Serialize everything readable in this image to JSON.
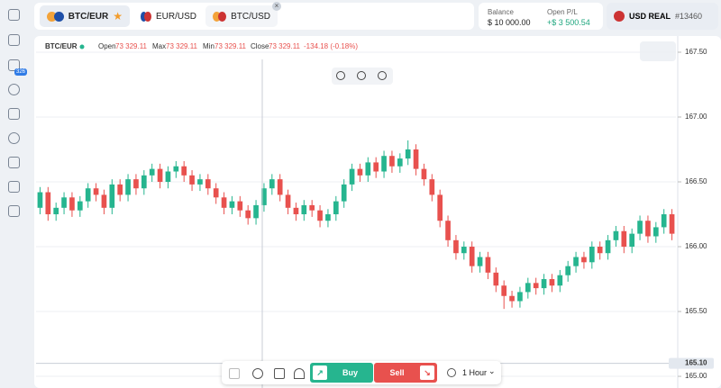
{
  "ui": {
    "badge": "326",
    "tabs": [
      "BTC/EUR",
      "EUR/USD",
      "BTC/USD"
    ],
    "balance_label": "Balance",
    "balance": "$ 10 000.00",
    "pl_label": "Open P/L",
    "pl": "+$ 3 500.54",
    "account": "USD REAL",
    "account_id": "#13460",
    "buy": "Buy",
    "sell": "Sell",
    "interval": "1 Hour"
  },
  "chart_data": {
    "type": "candlestick",
    "title": "BTC/EUR",
    "ohlc": {
      "open_label": "Open",
      "open": "73 329.11",
      "max_label": "Max",
      "max": "73 329.11",
      "min_label": "Min",
      "min": "73 329.11",
      "close_label": "Close",
      "close": "73 329.11",
      "change": "-134.18 (-0.18%)"
    },
    "up_color": "#26b58f",
    "down_color": "#e8514e",
    "ylim": [
      164.91,
      167.625
    ],
    "yticks": [
      {
        "value": 165,
        "label": "165.00"
      },
      {
        "value": 165.5,
        "label": "165.50"
      },
      {
        "value": 166,
        "label": "166.00"
      },
      {
        "value": 166.5,
        "label": "166.50"
      },
      {
        "value": 167,
        "label": "167.00"
      },
      {
        "value": 167.5,
        "label": "167.50"
      }
    ],
    "grid": true,
    "crosshair": {
      "value": 165.1,
      "label": "165.10"
    },
    "open": [
      166.3,
      166.42,
      166.25,
      166.3,
      166.38,
      166.28,
      166.35,
      166.45,
      166.4,
      166.3,
      166.48,
      166.4,
      166.52,
      166.45,
      166.55,
      166.6,
      166.5,
      166.58,
      166.62,
      166.55,
      166.48,
      166.52,
      166.45,
      166.38,
      166.3,
      166.35,
      166.28,
      166.22,
      166.32,
      166.45,
      166.52,
      166.4,
      166.3,
      166.25,
      166.32,
      166.28,
      166.2,
      166.25,
      166.35,
      166.48,
      166.6,
      166.55,
      166.65,
      166.58,
      166.7,
      166.62,
      166.68,
      166.75,
      166.6,
      166.52,
      166.4,
      166.2,
      166.05,
      165.95,
      166.0,
      165.85,
      165.92,
      165.8,
      165.7,
      165.62,
      165.58,
      165.65,
      165.72,
      165.68,
      165.75,
      165.7,
      165.78,
      165.85,
      165.92,
      165.88,
      166.0,
      165.95,
      166.05,
      166.12,
      166.0,
      166.1,
      166.2,
      166.08,
      166.15,
      166.25
    ],
    "high": [
      166.46,
      166.46,
      166.34,
      166.42,
      166.42,
      166.39,
      166.49,
      166.49,
      166.44,
      166.52,
      166.52,
      166.56,
      166.56,
      166.59,
      166.64,
      166.64,
      166.62,
      166.66,
      166.66,
      166.59,
      166.56,
      166.56,
      166.49,
      166.42,
      166.39,
      166.39,
      166.32,
      166.36,
      166.49,
      166.56,
      166.56,
      166.44,
      166.34,
      166.36,
      166.36,
      166.32,
      166.29,
      166.39,
      166.52,
      166.64,
      166.64,
      166.69,
      166.69,
      166.74,
      166.74,
      166.72,
      166.82,
      166.79,
      166.64,
      166.56,
      166.44,
      166.24,
      166.09,
      166.04,
      166.04,
      165.96,
      165.96,
      165.84,
      165.74,
      165.66,
      165.69,
      165.76,
      165.76,
      165.79,
      165.79,
      165.82,
      165.89,
      165.96,
      165.96,
      166.04,
      166.04,
      166.09,
      166.16,
      166.16,
      166.14,
      166.24,
      166.24,
      166.19,
      166.29,
      166.29
    ],
    "low": [
      166.25,
      166.2,
      166.2,
      166.25,
      166.23,
      166.23,
      166.3,
      166.35,
      166.25,
      166.25,
      166.35,
      166.35,
      166.4,
      166.4,
      166.5,
      166.45,
      166.45,
      166.53,
      166.5,
      166.43,
      166.43,
      166.4,
      166.33,
      166.25,
      166.25,
      166.23,
      166.17,
      166.17,
      166.27,
      166.4,
      166.35,
      166.25,
      166.2,
      166.2,
      166.23,
      166.15,
      166.15,
      166.2,
      166.3,
      166.43,
      166.5,
      166.5,
      166.53,
      166.53,
      166.57,
      166.57,
      166.63,
      166.55,
      166.47,
      166.35,
      166.15,
      166.0,
      165.9,
      165.9,
      165.8,
      165.8,
      165.75,
      165.65,
      165.52,
      165.53,
      165.53,
      165.6,
      165.63,
      165.63,
      165.65,
      165.65,
      165.73,
      165.8,
      165.83,
      165.83,
      165.9,
      165.9,
      166.0,
      165.95,
      165.95,
      166.05,
      166.03,
      166.03,
      166.1,
      166.05
    ],
    "close": [
      166.42,
      166.25,
      166.3,
      166.38,
      166.28,
      166.35,
      166.45,
      166.4,
      166.3,
      166.48,
      166.4,
      166.52,
      166.45,
      166.55,
      166.6,
      166.5,
      166.58,
      166.62,
      166.55,
      166.48,
      166.52,
      166.45,
      166.38,
      166.3,
      166.35,
      166.28,
      166.22,
      166.32,
      166.45,
      166.52,
      166.4,
      166.3,
      166.25,
      166.32,
      166.28,
      166.2,
      166.25,
      166.35,
      166.48,
      166.6,
      166.55,
      166.65,
      166.58,
      166.7,
      166.62,
      166.68,
      166.75,
      166.6,
      166.52,
      166.4,
      166.2,
      166.05,
      165.95,
      166.0,
      165.85,
      165.92,
      165.8,
      165.7,
      165.62,
      165.58,
      165.65,
      165.72,
      165.68,
      165.75,
      165.7,
      165.78,
      165.85,
      165.92,
      165.88,
      166.0,
      165.95,
      166.05,
      166.12,
      166.0,
      166.1,
      166.2,
      166.08,
      166.15,
      166.25,
      166.1
    ]
  }
}
